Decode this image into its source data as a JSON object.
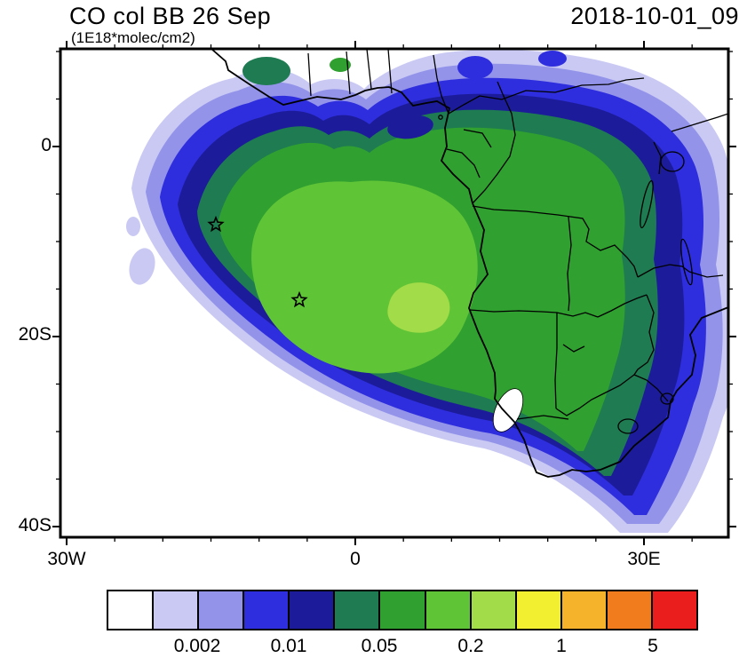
{
  "header": {
    "title": "CO col BB 26 Sep",
    "subtitle": "(1E18*molec/cm2)",
    "timestamp": "2018-10-01_09"
  },
  "axes": {
    "y_tick_labels": [
      "0",
      "20S",
      "40S"
    ],
    "x_tick_labels": [
      "30W",
      "0",
      "30E"
    ]
  },
  "colorbar": {
    "labels": [
      "0.002",
      "0.01",
      "0.05",
      "0.2",
      "1",
      "5"
    ],
    "colors": [
      "#FFFFFF",
      "#C9C9F4",
      "#9393EA",
      "#2E2EDE",
      "#1C1C9A",
      "#1E7B52",
      "#30A030",
      "#5FC436",
      "#A2DC48",
      "#F2EE30",
      "#F5B32B",
      "#F07C1E",
      "#EB1E1E"
    ]
  },
  "chart_data": {
    "type": "heatmap",
    "title": "CO col BB 26 Sep",
    "units": "1E18*molec/cm2",
    "valid_time": "2018-10-01_09",
    "variable": "CO column from biomass burning (filled contours over Africa / South Atlantic)",
    "lon_range": [
      -31,
      39
    ],
    "lat_range": [
      -41,
      10.5
    ],
    "lon_major_ticks": [
      -30,
      0,
      30
    ],
    "lat_major_ticks": [
      0,
      -20,
      -40
    ],
    "tick_minor_interval_deg": 5,
    "contour_levels": [
      0.001,
      0.002,
      0.005,
      0.01,
      0.02,
      0.05,
      0.1,
      0.2,
      0.5,
      1,
      2,
      5
    ],
    "legend_position": "bottom",
    "grid": false,
    "markers": [
      {
        "symbol": "star",
        "lon": -14.5,
        "lat": -8.2
      },
      {
        "symbol": "star",
        "lon": -5.8,
        "lat": -16.2
      }
    ],
    "features": {
      "plume_center": {
        "lon": -3,
        "lat": -14
      },
      "plume_peak_band": "0.5 - 1",
      "plume_extent": "Large biomass-burning CO plume over the South Atlantic off Angola/Namibia, core 0.1-0.5, sweeping southeast across southern Africa to ~32E,40S; lighter 0.001-0.01 halo over central/east Africa"
    }
  }
}
